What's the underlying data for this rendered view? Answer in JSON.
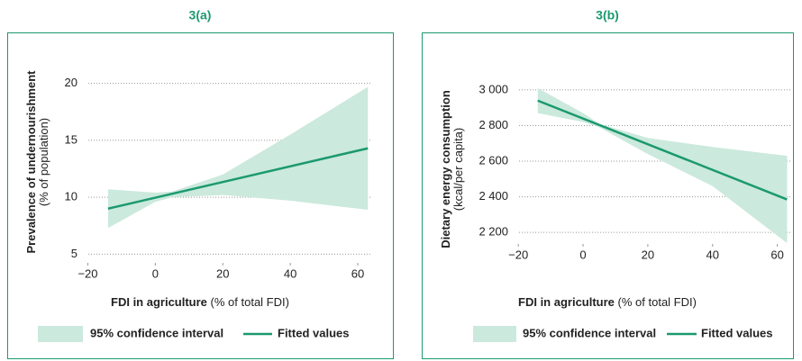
{
  "chart_data": [
    {
      "type": "line",
      "title": "3(a)",
      "y_label": "Prevalence of undernourishment",
      "y_sublabel": "(% of population)",
      "x_label": "FDI in agriculture",
      "x_sublabel": "(% of total FDI)",
      "xlim": [
        -22,
        64
      ],
      "xticks": [
        {
          "value": -20,
          "label": "−20"
        },
        0,
        20,
        40,
        60
      ],
      "ylim": [
        4,
        21
      ],
      "yticks": [
        5,
        10,
        15,
        20
      ],
      "grid": true,
      "band": {
        "name": "95% confidence interval",
        "color": "#cbe9dc",
        "x": [
          -14,
          0,
          5,
          20,
          40,
          63
        ],
        "upper": [
          10.7,
          10.4,
          10.5,
          12.0,
          15.5,
          19.7
        ],
        "lower": [
          7.3,
          9.6,
          10.0,
          10.2,
          9.7,
          8.9
        ]
      },
      "series": [
        {
          "name": "Fitted values",
          "color": "#1b9970",
          "x": [
            -14,
            63
          ],
          "values": [
            9.0,
            14.3
          ]
        }
      ]
    },
    {
      "type": "line",
      "title": "3(b)",
      "y_label": "Dietary energy consumption",
      "y_sublabel": "(kcal/per capita)",
      "x_label": "FDI in agriculture",
      "x_sublabel": "(% of total FDI)",
      "xlim": [
        -22,
        64
      ],
      "xticks": [
        {
          "value": -20,
          "label": "−20"
        },
        0,
        20,
        40,
        60
      ],
      "ylim": [
        2120,
        3060
      ],
      "yticks": [
        {
          "value": 2200,
          "label": "2 200"
        },
        {
          "value": 2400,
          "label": "2 400"
        },
        {
          "value": 2600,
          "label": "2 600"
        },
        {
          "value": 2800,
          "label": "2 800"
        },
        {
          "value": 3000,
          "label": "3 000"
        }
      ],
      "grid": true,
      "band": {
        "name": "95% confidence interval",
        "color": "#cbe9dc",
        "x": [
          -14,
          0,
          5,
          20,
          40,
          63
        ],
        "upper": [
          3010,
          2870,
          2810,
          2730,
          2680,
          2630
        ],
        "lower": [
          2870,
          2820,
          2790,
          2640,
          2460,
          2140
        ]
      },
      "series": [
        {
          "name": "Fitted values",
          "color": "#1b9970",
          "x": [
            -14,
            63
          ],
          "values": [
            2940,
            2385
          ]
        }
      ]
    }
  ]
}
